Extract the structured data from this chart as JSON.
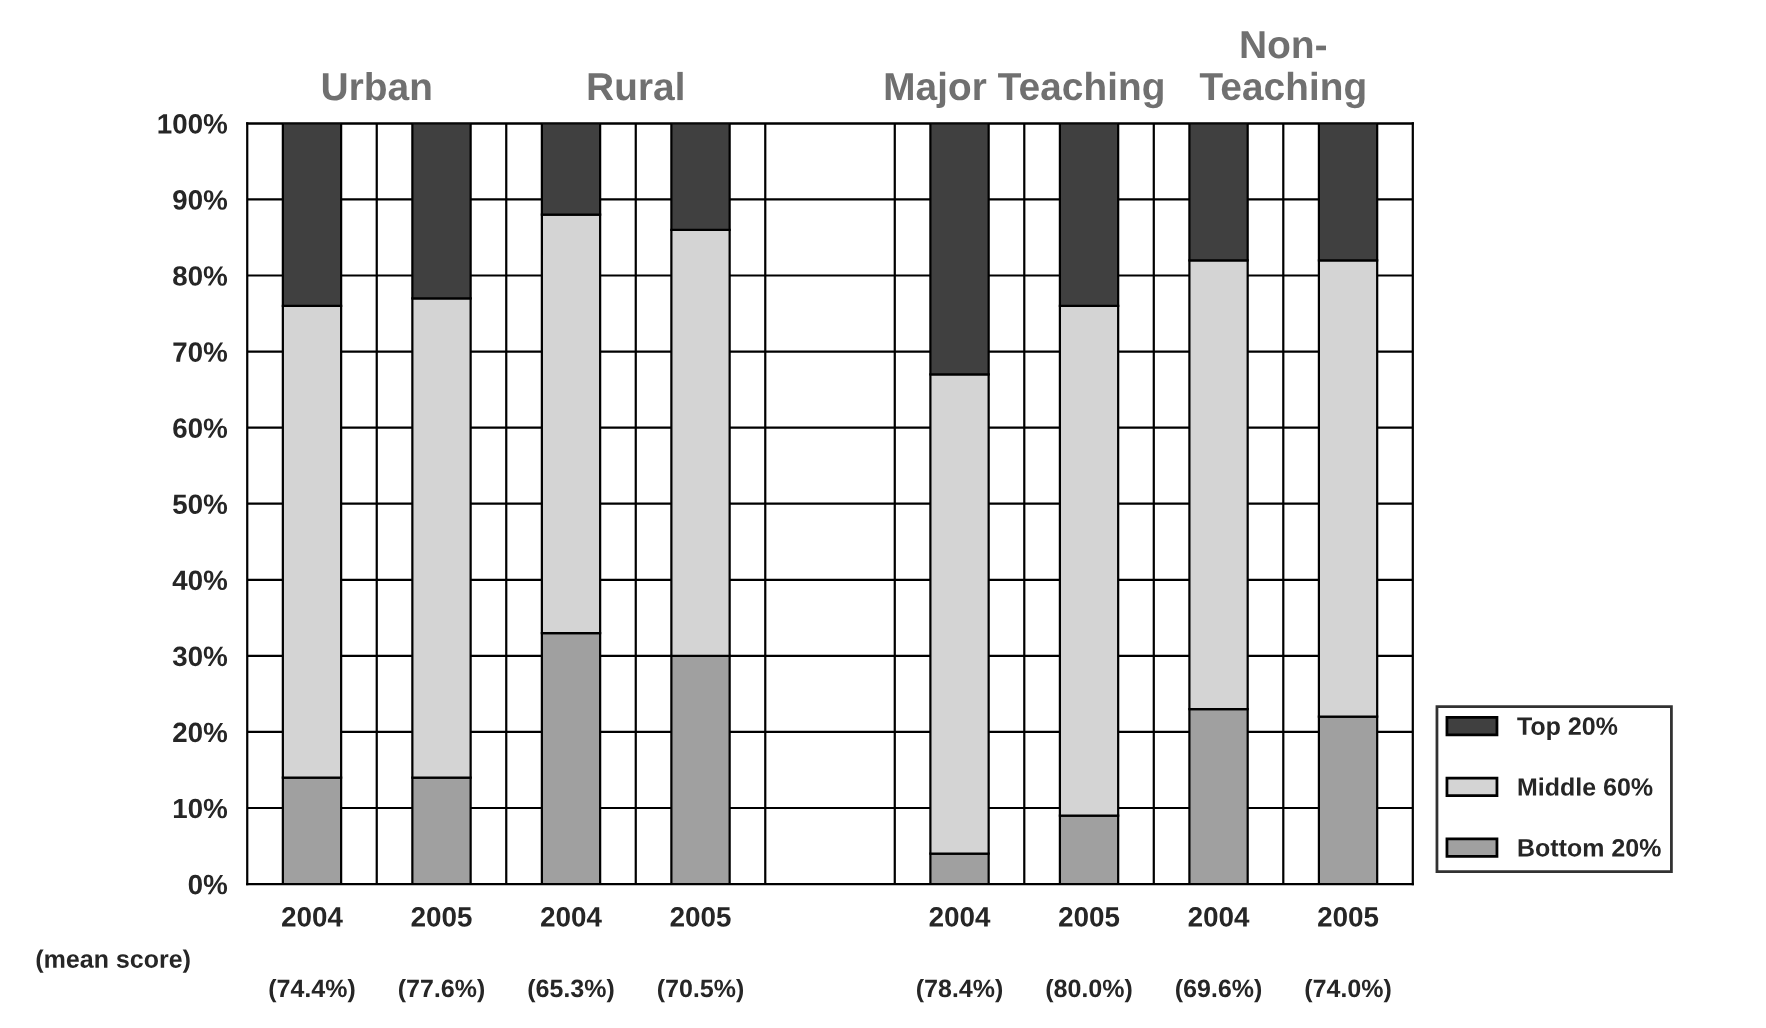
{
  "chart_data": {
    "type": "bar",
    "stacked": true,
    "categories": [
      "2004",
      "2005",
      "2004",
      "2005",
      null,
      "2004",
      "2005",
      "2004",
      "2005"
    ],
    "series": [
      {
        "name": "Bottom 20%",
        "color": "#a0a0a0",
        "values": [
          14,
          14,
          33,
          30,
          null,
          4,
          9,
          23,
          22
        ]
      },
      {
        "name": "Middle 60%",
        "color": "#d4d4d4",
        "values": [
          62,
          63,
          55,
          56,
          null,
          63,
          67,
          59,
          60
        ]
      },
      {
        "name": "Top 20%",
        "color": "#404040",
        "values": [
          24,
          23,
          12,
          14,
          null,
          33,
          24,
          18,
          18
        ]
      }
    ],
    "ylim": [
      0,
      100
    ],
    "yticks": [
      {
        "value": 0,
        "label": "0%"
      },
      {
        "value": 10,
        "label": "10%"
      },
      {
        "value": 20,
        "label": "20%"
      },
      {
        "value": 30,
        "label": "30%"
      },
      {
        "value": 40,
        "label": "40%"
      },
      {
        "value": 50,
        "label": "50%"
      },
      {
        "value": 60,
        "label": "60%"
      },
      {
        "value": 70,
        "label": "70%"
      },
      {
        "value": 80,
        "label": "80%"
      },
      {
        "value": 90,
        "label": "90%"
      },
      {
        "value": 100,
        "label": "100%"
      }
    ],
    "grid": true,
    "legend": "bottom right",
    "annotations": [
      "Urban",
      "Rural",
      "Major Teaching",
      "Non-\nTeaching",
      "(mean score)",
      "(74.4%)",
      "(77.6%)",
      "(65.3%)",
      "(70.5%)",
      "(78.4%)",
      "(80.0%)",
      "(69.6%)",
      "(74.0%)"
    ]
  }
}
